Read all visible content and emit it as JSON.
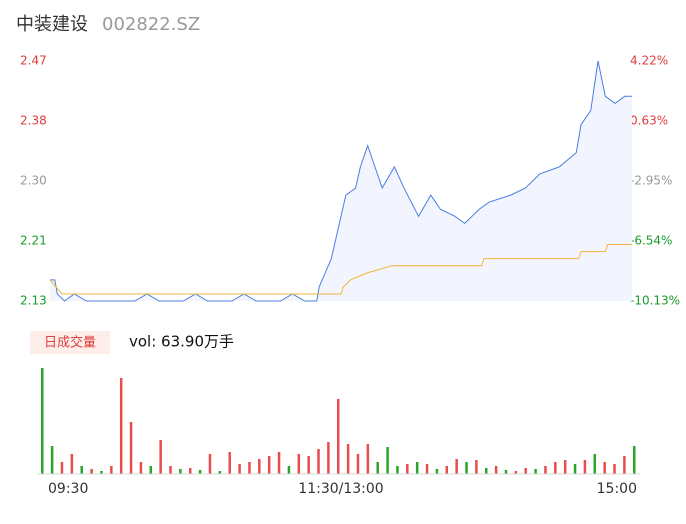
{
  "chart_data": {
    "type": "intraday",
    "title": "中装建设",
    "subtitle": "002822.SZ",
    "xlim": [
      0,
      240
    ],
    "xticks": [
      {
        "value": 0,
        "label": "09:30"
      },
      {
        "value": 120,
        "label": "11:30/13:00"
      },
      {
        "value": 240,
        "label": "15:00"
      }
    ],
    "ylim": [
      2.13,
      2.47
    ],
    "yticks": [
      {
        "value": 2.13,
        "label": "2.13"
      },
      {
        "value": 2.215,
        "label": "2.21"
      },
      {
        "value": 2.3,
        "label": "2.30"
      },
      {
        "value": 2.385,
        "label": "2.38"
      },
      {
        "value": 2.47,
        "label": "2.47"
      }
    ],
    "ytick_colors": [
      "#1a9c2a",
      "#1a9c2a",
      "#999999",
      "#e03c3c",
      "#e03c3c"
    ],
    "y2lim": [
      -10.13,
      4.22
    ],
    "y2ticks": [
      {
        "value": -10.13,
        "label": "-10.13%"
      },
      {
        "value": -6.54,
        "label": "-6.54%"
      },
      {
        "value": -2.95,
        "label": "-2.95%"
      },
      {
        "value": 0.63,
        "label": "0.63%"
      },
      {
        "value": 4.22,
        "label": "4.22%"
      }
    ],
    "series": [
      {
        "color": "#4a7fe0",
        "fill": "#f2f5fd",
        "x": [
          0,
          2,
          3,
          6,
          10,
          15,
          20,
          25,
          35,
          40,
          45,
          55,
          60,
          65,
          75,
          80,
          85,
          95,
          100,
          105,
          110,
          111,
          116,
          122,
          126,
          128,
          131,
          134,
          137,
          142,
          146,
          152,
          157,
          161,
          167,
          171,
          177,
          181,
          190,
          196,
          202,
          210,
          217,
          219,
          223,
          226,
          229,
          233,
          237,
          240
        ],
        "values": [
          2.16,
          2.16,
          2.14,
          2.13,
          2.14,
          2.13,
          2.13,
          2.13,
          2.13,
          2.14,
          2.13,
          2.13,
          2.14,
          2.13,
          2.13,
          2.14,
          2.13,
          2.13,
          2.14,
          2.13,
          2.13,
          2.15,
          2.19,
          2.28,
          2.29,
          2.32,
          2.35,
          2.32,
          2.29,
          2.32,
          2.29,
          2.25,
          2.28,
          2.26,
          2.25,
          2.24,
          2.26,
          2.27,
          2.28,
          2.29,
          2.31,
          2.32,
          2.34,
          2.38,
          2.4,
          2.47,
          2.42,
          2.41,
          2.42,
          2.42
        ]
      },
      {
        "color": "#f0b43c",
        "x": [
          0,
          5,
          120,
          121,
          124,
          131,
          141,
          178,
          179,
          218,
          219,
          229,
          230,
          240
        ],
        "values": [
          2.16,
          2.14,
          2.14,
          2.15,
          2.16,
          2.17,
          2.18,
          2.18,
          2.19,
          2.19,
          2.2,
          2.2,
          2.21,
          2.21
        ]
      }
    ],
    "volume_badge": "日成交量",
    "volume_label": "vol: 63.90万手",
    "volume_ylim": [
      0,
      110
    ],
    "up_color": "#e84d4d",
    "down_color": "#2aa52a",
    "volume_x": [
      0,
      4,
      8,
      12,
      16,
      20,
      24,
      28,
      32,
      36,
      40,
      44,
      48,
      52,
      56,
      60,
      64,
      68,
      72,
      76,
      80,
      84,
      88,
      92,
      96,
      100,
      104,
      108,
      112,
      116,
      120,
      124,
      128,
      132,
      136,
      140,
      144,
      148,
      152,
      156,
      160,
      164,
      168,
      172,
      176,
      180,
      184,
      188,
      192,
      196,
      200,
      204,
      208,
      212,
      216,
      220,
      224,
      228,
      232,
      236,
      240
    ],
    "volume": [
      106,
      28,
      12,
      20,
      8,
      5,
      3,
      8,
      96,
      52,
      12,
      8,
      34,
      8,
      5,
      6,
      4,
      20,
      3,
      22,
      10,
      12,
      15,
      18,
      22,
      8,
      20,
      18,
      25,
      32,
      75,
      30,
      20,
      30,
      12,
      27,
      8,
      10,
      12,
      10,
      5,
      8,
      15,
      12,
      14,
      6,
      8,
      4,
      3,
      6,
      5,
      8,
      12,
      14,
      10,
      14,
      20,
      12,
      10,
      18,
      28
    ],
    "volume_dir": [
      "down",
      "down",
      "up",
      "up",
      "down",
      "up",
      "down",
      "up",
      "up",
      "up",
      "up",
      "down",
      "up",
      "up",
      "down",
      "up",
      "down",
      "up",
      "down",
      "up",
      "up",
      "up",
      "up",
      "up",
      "up",
      "down",
      "up",
      "up",
      "up",
      "up",
      "up",
      "up",
      "up",
      "up",
      "down",
      "down",
      "down",
      "up",
      "down",
      "up",
      "down",
      "up",
      "up",
      "down",
      "up",
      "down",
      "up",
      "down",
      "up",
      "up",
      "down",
      "up",
      "up",
      "up",
      "down",
      "up",
      "down",
      "up",
      "up",
      "up",
      "down"
    ]
  }
}
